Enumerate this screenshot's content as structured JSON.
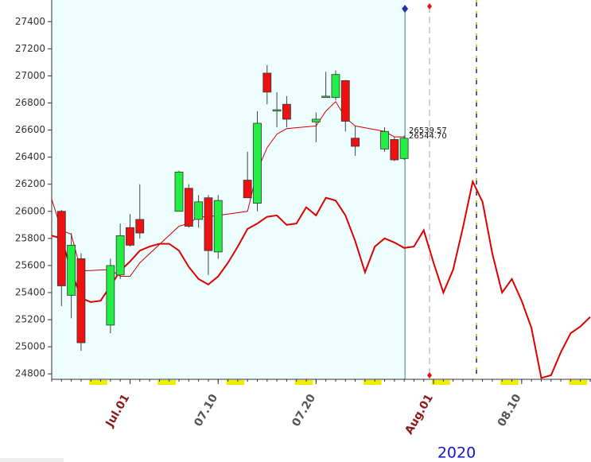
{
  "chart_data": {
    "type": "candlestick",
    "xlabel": "2020",
    "xlim": [
      "2020-06-23",
      "2020-08-17"
    ],
    "ylim": [
      24760,
      27560
    ],
    "yticks": [
      24800,
      25000,
      25200,
      25400,
      25600,
      25800,
      26000,
      26200,
      26400,
      26600,
      26800,
      27000,
      27200,
      27400
    ],
    "xticks": [
      {
        "value": "2020-07-01",
        "label": "Jul.01",
        "color": "#8b1a1a"
      },
      {
        "value": "2020-07-10",
        "label": "07.10",
        "color": "#555555"
      },
      {
        "value": "2020-07-20",
        "label": "07.20",
        "color": "#555555"
      },
      {
        "value": "2020-08-01",
        "label": "Aug.01",
        "color": "#8b1a1a"
      },
      {
        "value": "2020-08-10",
        "label": "08.10",
        "color": "#555555"
      }
    ],
    "up_color": "#22ee44",
    "down_color": "#ee1111",
    "candles": {
      "x": [
        "2020-06-24",
        "2020-06-25",
        "2020-06-26",
        "2020-06-29",
        "2020-06-30",
        "2020-07-01",
        "2020-07-02",
        "2020-07-06",
        "2020-07-07",
        "2020-07-08",
        "2020-07-09",
        "2020-07-10",
        "2020-07-13",
        "2020-07-14",
        "2020-07-15",
        "2020-07-16",
        "2020-07-17",
        "2020-07-20",
        "2020-07-21",
        "2020-07-22",
        "2020-07-23",
        "2020-07-24",
        "2020-07-27",
        "2020-07-28",
        "2020-07-29"
      ],
      "open": [
        26000,
        25380,
        25650,
        25160,
        25530,
        25880,
        25940,
        26000,
        26170,
        25940,
        26100,
        25700,
        26230,
        26060,
        27020,
        26740,
        26790,
        26660,
        26840,
        26840,
        26965,
        26540,
        26460,
        26530,
        26390
      ],
      "high": [
        26010,
        25840,
        25690,
        25650,
        25910,
        25980,
        26200,
        26300,
        26200,
        26120,
        26120,
        26120,
        26440,
        26740,
        27080,
        26880,
        26850,
        26730,
        27030,
        27040,
        26970,
        26630,
        26620,
        26550,
        26560
      ],
      "low": [
        25300,
        25210,
        24970,
        25100,
        25500,
        25740,
        25800,
        26000,
        25880,
        25880,
        25530,
        25650,
        26100,
        26000,
        26790,
        26620,
        26620,
        26510,
        26840,
        26820,
        26590,
        26410,
        26440,
        26370,
        26380
      ],
      "close": [
        25450,
        25750,
        25030,
        25600,
        25820,
        25750,
        25840,
        26290,
        25890,
        26070,
        25710,
        26080,
        26100,
        26650,
        26880,
        26750,
        26680,
        26680,
        26850,
        27010,
        26665,
        26480,
        26590,
        26380,
        26539.57
      ]
    },
    "series": [
      {
        "color": "#cc0000",
        "width": 1,
        "x": [
          "2020-06-23",
          "2020-06-24",
          "2020-06-25",
          "2020-06-26",
          "2020-06-29",
          "2020-06-30",
          "2020-07-01",
          "2020-07-02",
          "2020-07-06",
          "2020-07-07",
          "2020-07-08",
          "2020-07-09",
          "2020-07-10",
          "2020-07-13",
          "2020-07-14",
          "2020-07-15",
          "2020-07-16",
          "2020-07-17",
          "2020-07-20",
          "2020-07-21",
          "2020-07-22",
          "2020-07-23",
          "2020-07-24",
          "2020-07-27",
          "2020-07-28",
          "2020-07-29"
        ],
        "values": [
          26090,
          25860,
          25830,
          25560,
          25570,
          25520,
          25520,
          25620,
          25890,
          25910,
          25960,
          25960,
          25970,
          26000,
          26300,
          26470,
          26570,
          26610,
          26630,
          26740,
          26810,
          26690,
          26630,
          26590,
          26550,
          26550
        ]
      },
      {
        "color": "#dd0000",
        "width": 2,
        "x": [
          "2020-06-23",
          "2020-06-24",
          "2020-06-25",
          "2020-06-26",
          "2020-06-27",
          "2020-06-28",
          "2020-06-29",
          "2020-06-30",
          "2020-07-01",
          "2020-07-02",
          "2020-07-03",
          "2020-07-04",
          "2020-07-05",
          "2020-07-06",
          "2020-07-07",
          "2020-07-08",
          "2020-07-09",
          "2020-07-10",
          "2020-07-11",
          "2020-07-12",
          "2020-07-13",
          "2020-07-14",
          "2020-07-15",
          "2020-07-16",
          "2020-07-17",
          "2020-07-18",
          "2020-07-19",
          "2020-07-20",
          "2020-07-21",
          "2020-07-22",
          "2020-07-23",
          "2020-07-24",
          "2020-07-25",
          "2020-07-26",
          "2020-07-27",
          "2020-07-28",
          "2020-07-29",
          "2020-07-30",
          "2020-07-31",
          "2020-08-01",
          "2020-08-02",
          "2020-08-03",
          "2020-08-04",
          "2020-08-05",
          "2020-08-06",
          "2020-08-07",
          "2020-08-08",
          "2020-08-09",
          "2020-08-10",
          "2020-08-11",
          "2020-08-12",
          "2020-08-13",
          "2020-08-14",
          "2020-08-15",
          "2020-08-16",
          "2020-08-17"
        ],
        "values": [
          25820,
          25800,
          25560,
          25360,
          25330,
          25340,
          25450,
          25560,
          25630,
          25710,
          25740,
          25760,
          25760,
          25710,
          25590,
          25500,
          25460,
          25520,
          25620,
          25740,
          25870,
          25910,
          25960,
          25970,
          25900,
          25910,
          26030,
          25970,
          26100,
          26080,
          25970,
          25780,
          25550,
          25740,
          25800,
          25770,
          25730,
          25740,
          25860,
          25620,
          25400,
          25570,
          25880,
          26220,
          26070,
          25690,
          25400,
          25500,
          25340,
          25140,
          24770,
          24790,
          24960,
          25100,
          25150,
          25220
        ]
      }
    ],
    "annotations": [
      {
        "text": "26539.57"
      },
      {
        "text": "26544.70"
      }
    ]
  }
}
